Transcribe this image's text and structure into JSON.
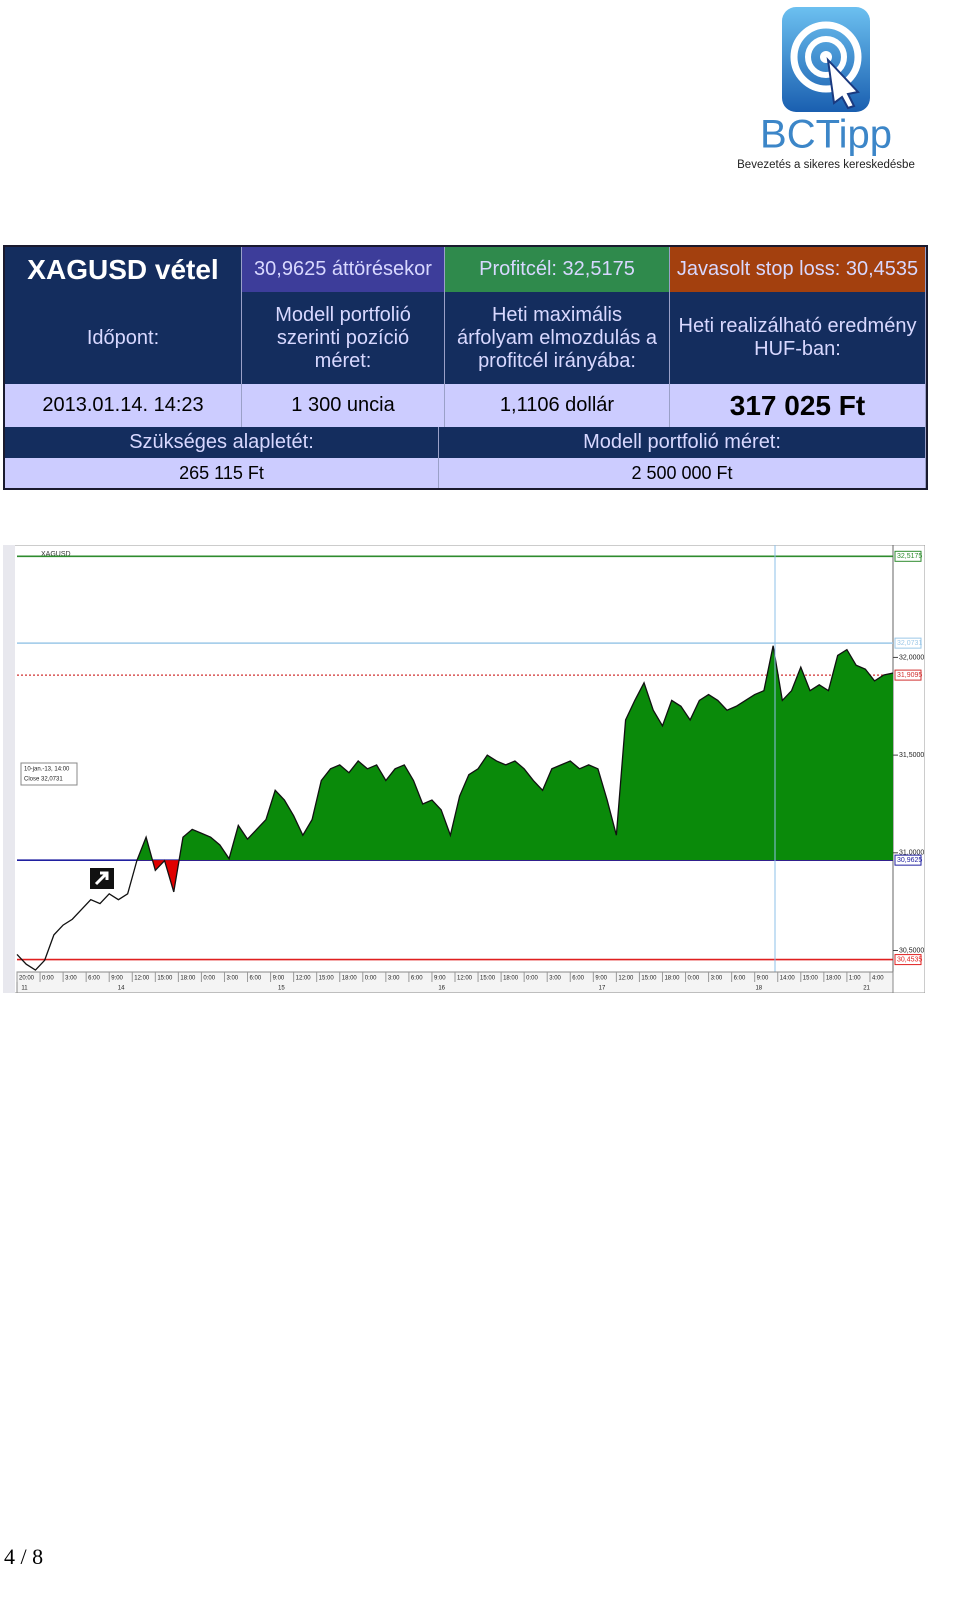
{
  "logo": {
    "brand": "BCTipp",
    "tagline": "Bevezetés a sikeres kereskedésbe"
  },
  "table": {
    "title": "XAGUSD vétel",
    "entry": "30,9625 áttörésekor",
    "target": "Profitcél: 32,5175",
    "stop": "Javasolt stop loss: 30,4535",
    "headers": [
      "Időpont:",
      "Modell portfolió szerinti pozíció méret:",
      "Heti maximális árfolyam elmozdulás a profitcél irányába:",
      "Heti realizálható eredmény HUF-ban:"
    ],
    "values": [
      "2013.01.14. 14:23",
      "1 300 uncia",
      "1,1106 dollár",
      "317 025 Ft"
    ],
    "footer_headers": [
      "Szükséges alapletét:",
      "Modell portfolió méret:"
    ],
    "footer_values": [
      "265 115 Ft",
      "2 500 000 Ft"
    ]
  },
  "chart_data": {
    "type": "area",
    "symbol": "XAGUSD",
    "tooltip": [
      "10-jan.-13, 14:00",
      "Close   32,0731"
    ],
    "ylim": [
      30.39,
      32.56
    ],
    "yticks": [
      {
        "value": 32,
        "label": "32,0000"
      },
      {
        "value": 31.5,
        "label": "31,5000"
      },
      {
        "value": 31,
        "label": "31,0000"
      },
      {
        "value": 30.5,
        "label": "30,5000"
      }
    ],
    "levels": [
      {
        "value": 32.5175,
        "label": "32,5175",
        "color": "#2e8b2e",
        "dash": false
      },
      {
        "value": 32.0731,
        "label": "32,0731",
        "color": "#9cc8e8",
        "dash": false
      },
      {
        "value": 31.9095,
        "label": "31,9095",
        "color": "#d03030",
        "dash": true
      },
      {
        "value": 30.9625,
        "label": "30,9625",
        "color": "#2020a0",
        "dash": false
      },
      {
        "value": 30.4535,
        "label": "30,4535",
        "color": "#e02020",
        "dash": false
      }
    ],
    "fill_base": 30.9625,
    "fill_color": "#0a8a0a",
    "below_color": "#e00000",
    "line_color": "#111111",
    "series": [
      {
        "fill": false,
        "values": [
          30.48,
          30.43,
          30.4,
          30.45,
          30.58,
          30.63,
          30.66,
          30.71,
          30.76,
          30.74,
          30.79,
          30.76,
          30.79,
          30.96,
          null,
          null,
          null,
          null,
          null,
          null,
          null,
          null,
          null,
          null,
          null,
          null,
          null,
          null,
          null,
          null,
          null,
          null,
          null,
          null,
          null,
          null,
          null,
          null,
          null,
          null,
          null,
          null,
          null,
          null,
          null,
          null,
          null,
          null,
          null,
          null,
          null,
          null,
          null,
          null,
          null,
          null,
          null,
          null,
          null,
          null,
          null,
          null,
          null,
          null,
          null,
          null,
          null,
          null,
          null,
          null,
          null,
          null,
          null,
          null,
          null,
          null,
          null,
          null,
          null,
          null,
          null,
          null,
          null,
          null,
          null,
          null,
          null,
          null,
          null,
          null,
          null,
          null,
          null,
          null,
          null,
          null
        ]
      },
      {
        "fill": true,
        "values": [
          null,
          null,
          null,
          null,
          null,
          null,
          null,
          null,
          null,
          null,
          null,
          null,
          null,
          30.96,
          31.08,
          30.91,
          30.96,
          30.8,
          31.08,
          31.12,
          31.1,
          31.08,
          31.04,
          30.97,
          31.14,
          31.07,
          31.12,
          31.17,
          31.32,
          31.27,
          31.19,
          31.09,
          31.17,
          31.37,
          31.43,
          31.45,
          31.41,
          31.47,
          31.43,
          31.45,
          31.37,
          31.43,
          31.45,
          31.37,
          31.25,
          31.27,
          31.22,
          31.09,
          31.29,
          31.4,
          31.43,
          31.5,
          31.47,
          31.45,
          31.47,
          31.43,
          31.37,
          31.32,
          31.43,
          31.45,
          31.47,
          31.43,
          31.45,
          31.43,
          31.27,
          31.09,
          31.68,
          31.78,
          31.87,
          31.73,
          31.65,
          31.78,
          31.75,
          31.68,
          31.78,
          31.81,
          31.78,
          31.73,
          31.75,
          31.78,
          31.81,
          31.83,
          32.06,
          31.78,
          31.83,
          31.95,
          31.83,
          31.86,
          31.83,
          32.01,
          32.04,
          31.96,
          31.94,
          31.88,
          31.91,
          31.92
        ]
      }
    ],
    "time_labels": [
      "20:00",
      "0:00",
      "3:00",
      "6:00",
      "9:00",
      "12:00",
      "15:00",
      "18:00",
      "0:00",
      "3:00",
      "6:00",
      "9:00",
      "12:00",
      "15:00",
      "18:00",
      "0:00",
      "3:00",
      "6:00",
      "9:00",
      "12:00",
      "15:00",
      "18:00",
      "0:00",
      "3:00",
      "6:00",
      "9:00",
      "12:00",
      "15:00",
      "18:00",
      "0:00",
      "3:00",
      "6:00",
      "9:00",
      "14:00",
      "15:00",
      "18:00",
      "1:00",
      "4:00"
    ],
    "day_labels": [
      "11",
      "14",
      "15",
      "16",
      "17",
      "18",
      "21"
    ]
  },
  "page_number": "4 / 8"
}
